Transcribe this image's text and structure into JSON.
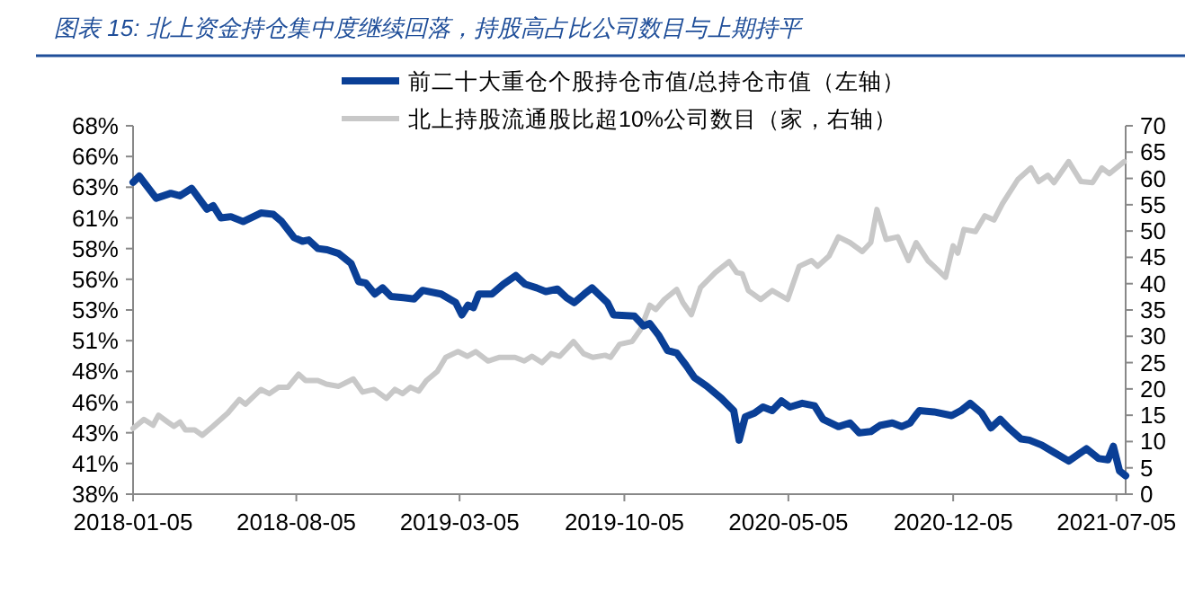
{
  "chart_data": {
    "type": "line",
    "title": "图表 15: 北上资金持仓集中度继续回落，持股高占比公司数目与上期持平",
    "legend": "top",
    "grid": false,
    "marker": "none",
    "line_style": "solid",
    "xlim": [
      "2018-01-05",
      "2021-07-17"
    ],
    "xticks": [
      "2018-01-05",
      "2018-08-05",
      "2019-03-05",
      "2019-10-05",
      "2020-05-05",
      "2020-12-05",
      "2021-07-05"
    ],
    "ylim": [
      38,
      68
    ],
    "yticks": [
      {
        "value": 38,
        "label": "38%"
      },
      {
        "value": 40.5,
        "label": "41%"
      },
      {
        "value": 43,
        "label": "43%"
      },
      {
        "value": 45.5,
        "label": "46%"
      },
      {
        "value": 48,
        "label": "48%"
      },
      {
        "value": 50.5,
        "label": "51%"
      },
      {
        "value": 53,
        "label": "53%"
      },
      {
        "value": 55.5,
        "label": "56%"
      },
      {
        "value": 58,
        "label": "58%"
      },
      {
        "value": 60.5,
        "label": "61%"
      },
      {
        "value": 63,
        "label": "63%"
      },
      {
        "value": 65.5,
        "label": "66%"
      },
      {
        "value": 68,
        "label": "68%"
      }
    ],
    "y2lim": [
      0,
      70
    ],
    "y2ticks": [
      0,
      5,
      10,
      15,
      20,
      25,
      30,
      35,
      40,
      45,
      50,
      55,
      60,
      65,
      70
    ],
    "series": [
      {
        "name": "前二十大重仓个股持仓市值/总持仓市值（左轴）",
        "color": "#0a3f96",
        "axis": "y",
        "x": [
          "2018-01-05",
          "2018-01-13",
          "2018-02-04",
          "2018-02-23",
          "2018-03-07",
          "2018-03-22",
          "2018-04-11",
          "2018-04-19",
          "2018-04-29",
          "2018-05-12",
          "2018-05-28",
          "2018-06-20",
          "2018-07-06",
          "2018-07-17",
          "2018-08-02",
          "2018-08-13",
          "2018-08-21",
          "2018-09-02",
          "2018-09-14",
          "2018-09-29",
          "2018-10-15",
          "2018-10-25",
          "2018-11-03",
          "2018-11-15",
          "2018-11-25",
          "2018-12-06",
          "2018-12-22",
          "2019-01-05",
          "2019-01-16",
          "2019-02-09",
          "2019-02-28",
          "2019-03-08",
          "2019-03-16",
          "2019-03-23",
          "2019-03-30",
          "2019-04-16",
          "2019-05-01",
          "2019-05-17",
          "2019-05-29",
          "2019-06-13",
          "2019-06-25",
          "2019-07-10",
          "2019-07-22",
          "2019-08-01",
          "2019-08-14",
          "2019-08-24",
          "2019-09-13",
          "2019-09-21",
          "2019-10-18",
          "2019-10-30",
          "2019-11-07",
          "2019-11-19",
          "2019-11-30",
          "2019-12-12",
          "2019-12-24",
          "2020-01-04",
          "2020-01-20",
          "2020-02-08",
          "2020-02-24",
          "2020-03-02",
          "2020-03-10",
          "2020-03-22",
          "2020-04-02",
          "2020-04-14",
          "2020-04-26",
          "2020-05-07",
          "2020-05-23",
          "2020-06-08",
          "2020-06-19",
          "2020-07-09",
          "2020-07-24",
          "2020-08-05",
          "2020-08-20",
          "2020-09-01",
          "2020-09-17",
          "2020-09-29",
          "2020-10-10",
          "2020-10-22",
          "2020-11-10",
          "2020-12-03",
          "2020-12-15",
          "2020-12-27",
          "2021-01-11",
          "2021-01-23",
          "2021-02-04",
          "2021-02-15",
          "2021-03-03",
          "2021-03-14",
          "2021-03-30",
          "2021-04-15",
          "2021-05-04",
          "2021-05-27",
          "2021-06-12",
          "2021-06-24",
          "2021-07-01",
          "2021-07-09",
          "2021-07-17"
        ],
        "values": [
          63.4,
          63.9,
          62.1,
          62.5,
          62.3,
          62.9,
          61.2,
          61.5,
          60.5,
          60.6,
          60.2,
          60.9,
          60.8,
          60.2,
          58.9,
          58.6,
          58.7,
          58.0,
          57.9,
          57.6,
          56.8,
          55.3,
          55.2,
          54.3,
          54.8,
          54.1,
          54.0,
          53.9,
          54.6,
          54.3,
          53.6,
          52.6,
          53.4,
          53.2,
          54.3,
          54.3,
          55.1,
          55.8,
          55.1,
          54.8,
          54.5,
          54.7,
          54.0,
          53.6,
          54.3,
          54.8,
          53.6,
          52.6,
          52.5,
          51.7,
          51.9,
          50.9,
          49.7,
          49.5,
          48.5,
          47.5,
          46.8,
          45.8,
          44.8,
          42.4,
          44.3,
          44.6,
          45.1,
          44.8,
          45.6,
          45.1,
          45.4,
          45.2,
          44.1,
          43.5,
          43.8,
          43.0,
          43.1,
          43.6,
          43.8,
          43.5,
          43.8,
          44.8,
          44.7,
          44.4,
          44.8,
          45.4,
          44.6,
          43.4,
          44.1,
          43.4,
          42.5,
          42.4,
          42.0,
          41.4,
          40.7,
          41.7,
          40.9,
          40.8,
          41.9,
          39.9,
          39.5
        ]
      },
      {
        "name": "北上持股流通股比超10%公司数目（家，右轴）",
        "color": "#c8c8c8",
        "axis": "y2",
        "x": [
          "2018-01-05",
          "2018-01-19",
          "2018-01-31",
          "2018-02-07",
          "2018-02-19",
          "2018-02-27",
          "2018-03-07",
          "2018-03-14",
          "2018-03-26",
          "2018-04-05",
          "2018-04-18",
          "2018-05-08",
          "2018-05-23",
          "2018-05-31",
          "2018-06-20",
          "2018-07-01",
          "2018-07-13",
          "2018-07-25",
          "2018-08-08",
          "2018-08-17",
          "2018-09-02",
          "2018-09-13",
          "2018-09-29",
          "2018-10-18",
          "2018-10-30",
          "2018-11-14",
          "2018-11-30",
          "2018-12-11",
          "2018-12-21",
          "2018-12-31",
          "2019-01-11",
          "2019-01-21",
          "2019-02-04",
          "2019-02-15",
          "2019-03-03",
          "2019-03-15",
          "2019-03-26",
          "2019-04-11",
          "2019-04-26",
          "2019-05-16",
          "2019-05-28",
          "2019-06-07",
          "2019-06-20",
          "2019-07-02",
          "2019-07-13",
          "2019-07-31",
          "2019-08-13",
          "2019-08-25",
          "2019-09-10",
          "2019-09-17",
          "2019-09-29",
          "2019-10-15",
          "2019-10-26",
          "2019-11-07",
          "2019-11-15",
          "2019-11-26",
          "2019-12-12",
          "2019-12-20",
          "2019-12-31",
          "2020-01-12",
          "2020-01-31",
          "2020-02-18",
          "2020-02-28",
          "2020-03-06",
          "2020-03-14",
          "2020-03-30",
          "2020-04-14",
          "2020-05-04",
          "2020-05-19",
          "2020-06-04",
          "2020-06-12",
          "2020-06-27",
          "2020-07-09",
          "2020-07-24",
          "2020-08-09",
          "2020-08-20",
          "2020-08-28",
          "2020-09-09",
          "2020-09-24",
          "2020-10-08",
          "2020-10-18",
          "2020-11-02",
          "2020-11-10",
          "2020-11-25",
          "2020-12-05",
          "2020-12-11",
          "2020-12-19",
          "2021-01-03",
          "2021-01-15",
          "2021-01-27",
          "2021-02-07",
          "2021-02-27",
          "2021-03-16",
          "2021-03-26",
          "2021-04-07",
          "2021-04-15",
          "2021-05-04",
          "2021-05-20",
          "2021-06-04",
          "2021-06-16",
          "2021-06-26",
          "2021-07-15"
        ],
        "values": [
          12.5,
          14.2,
          13.1,
          15.0,
          13.7,
          12.9,
          13.7,
          12.2,
          12.2,
          11.2,
          12.8,
          15.4,
          18.0,
          17.1,
          19.9,
          19.1,
          20.3,
          20.3,
          22.8,
          21.6,
          21.6,
          20.9,
          20.5,
          21.9,
          19.4,
          19.9,
          18.2,
          19.9,
          19.1,
          20.3,
          19.6,
          21.6,
          23.3,
          26.0,
          27.1,
          26.2,
          27.1,
          25.3,
          26.0,
          26.0,
          25.3,
          26.2,
          25.0,
          26.7,
          26.2,
          29.0,
          26.7,
          26.0,
          26.4,
          26.0,
          28.5,
          29.0,
          31.3,
          35.9,
          35.1,
          37.0,
          38.9,
          36.4,
          34.1,
          39.3,
          42.1,
          44.2,
          42.1,
          41.9,
          38.7,
          37.0,
          38.7,
          37.0,
          43.3,
          44.4,
          43.3,
          45.3,
          48.9,
          47.8,
          46.1,
          47.8,
          54.1,
          48.4,
          48.9,
          44.4,
          47.8,
          44.4,
          43.3,
          41.2,
          47.2,
          45.8,
          50.3,
          49.9,
          52.9,
          52.1,
          55.2,
          59.8,
          62.0,
          59.4,
          60.6,
          59.2,
          63.2,
          59.4,
          59.2,
          62.0,
          60.9,
          63.2
        ]
      }
    ]
  }
}
